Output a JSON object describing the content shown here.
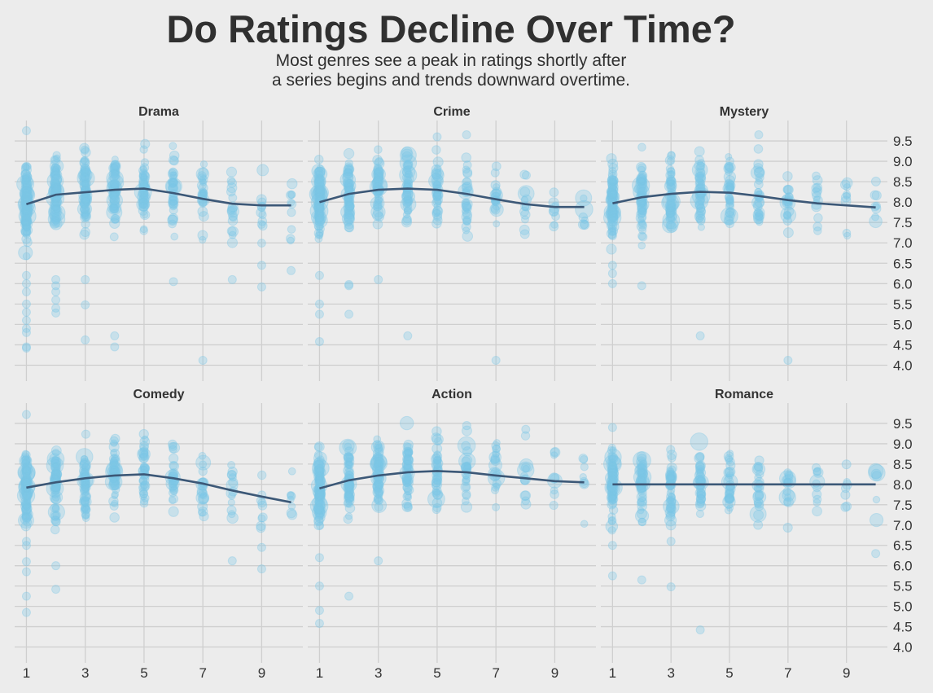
{
  "title": "Do Ratings Decline Over Time?",
  "subtitle_line1": "Most genres see a peak in ratings shortly after",
  "subtitle_line2": "a series begins and trends downward overtime.",
  "chart_data": {
    "type": "scatter",
    "layout": "facets-2x3",
    "x_ticks": [
      1,
      3,
      5,
      7,
      9
    ],
    "y_ticks": [
      4.0,
      4.5,
      5.0,
      5.5,
      6.0,
      6.5,
      7.0,
      7.5,
      8.0,
      8.5,
      9.0,
      9.5
    ],
    "x_range": [
      0.6,
      10.4
    ],
    "y_range": [
      3.85,
      10.0
    ],
    "grid": true,
    "point_color": "#7cc6e6",
    "trend_color": "#3c5877",
    "facets": [
      {
        "genre": "Drama",
        "trend": [
          [
            1,
            7.95
          ],
          [
            2,
            8.18
          ],
          [
            3,
            8.24
          ],
          [
            4,
            8.3
          ],
          [
            5,
            8.33
          ],
          [
            6,
            8.22
          ],
          [
            7,
            8.08
          ],
          [
            8,
            7.96
          ],
          [
            9,
            7.92
          ],
          [
            10,
            7.92
          ]
        ],
        "outliers": [
          [
            1,
            5.8
          ],
          [
            1,
            5.5
          ],
          [
            1,
            5.3
          ],
          [
            1,
            5.1
          ],
          [
            1,
            4.9
          ],
          [
            1,
            4.8
          ],
          [
            1,
            4.45
          ],
          [
            1,
            4.42
          ],
          [
            1,
            6.0
          ],
          [
            1,
            6.2
          ],
          [
            1,
            9.75
          ],
          [
            2,
            6.1
          ],
          [
            2,
            5.95
          ],
          [
            2,
            5.8
          ],
          [
            2,
            5.6
          ],
          [
            2,
            5.4
          ],
          [
            2,
            5.28
          ],
          [
            3,
            6.1
          ],
          [
            3,
            5.48
          ],
          [
            3,
            4.62
          ],
          [
            4,
            4.72
          ],
          [
            4,
            4.45
          ],
          [
            6,
            6.05
          ],
          [
            7,
            4.12
          ],
          [
            8,
            6.1
          ],
          [
            9,
            6.45
          ],
          [
            9,
            5.92
          ],
          [
            10,
            6.32
          ]
        ]
      },
      {
        "genre": "Crime",
        "trend": [
          [
            1,
            8.0
          ],
          [
            2,
            8.2
          ],
          [
            3,
            8.3
          ],
          [
            4,
            8.33
          ],
          [
            5,
            8.3
          ],
          [
            6,
            8.2
          ],
          [
            7,
            8.07
          ],
          [
            8,
            7.95
          ],
          [
            9,
            7.88
          ],
          [
            10,
            7.88
          ]
        ],
        "outliers": [
          [
            1,
            6.2
          ],
          [
            1,
            5.5
          ],
          [
            1,
            5.25
          ],
          [
            1,
            4.58
          ],
          [
            2,
            5.98
          ],
          [
            2,
            5.95
          ],
          [
            2,
            5.25
          ],
          [
            3,
            6.1
          ],
          [
            4,
            4.72
          ],
          [
            5,
            9.6
          ],
          [
            6,
            9.65
          ],
          [
            7,
            4.12
          ]
        ]
      },
      {
        "genre": "Mystery",
        "trend": [
          [
            1,
            7.97
          ],
          [
            2,
            8.12
          ],
          [
            3,
            8.2
          ],
          [
            4,
            8.25
          ],
          [
            5,
            8.23
          ],
          [
            6,
            8.15
          ],
          [
            7,
            8.05
          ],
          [
            8,
            7.97
          ],
          [
            9,
            7.92
          ],
          [
            10,
            7.87
          ]
        ],
        "outliers": [
          [
            1,
            6.45
          ],
          [
            1,
            6.25
          ],
          [
            1,
            6.0
          ],
          [
            2,
            5.95
          ],
          [
            4,
            4.72
          ],
          [
            6,
            9.65
          ],
          [
            7,
            4.12
          ]
        ]
      },
      {
        "genre": "Comedy",
        "trend": [
          [
            1,
            7.92
          ],
          [
            2,
            8.05
          ],
          [
            3,
            8.15
          ],
          [
            4,
            8.22
          ],
          [
            5,
            8.25
          ],
          [
            6,
            8.15
          ],
          [
            7,
            8.02
          ],
          [
            8,
            7.85
          ],
          [
            9,
            7.7
          ],
          [
            10,
            7.56
          ]
        ],
        "outliers": [
          [
            1,
            6.6
          ],
          [
            1,
            6.5
          ],
          [
            1,
            6.1
          ],
          [
            1,
            5.85
          ],
          [
            1,
            5.25
          ],
          [
            1,
            4.85
          ],
          [
            1,
            9.72
          ],
          [
            2,
            6.0
          ],
          [
            2,
            5.42
          ],
          [
            8,
            6.12
          ],
          [
            9,
            6.45
          ],
          [
            9,
            5.92
          ]
        ]
      },
      {
        "genre": "Action",
        "trend": [
          [
            1,
            7.9
          ],
          [
            2,
            8.1
          ],
          [
            3,
            8.22
          ],
          [
            4,
            8.3
          ],
          [
            5,
            8.33
          ],
          [
            6,
            8.3
          ],
          [
            7,
            8.22
          ],
          [
            8,
            8.15
          ],
          [
            9,
            8.08
          ],
          [
            10,
            8.05
          ]
        ],
        "outliers": [
          [
            1,
            6.2
          ],
          [
            1,
            5.5
          ],
          [
            1,
            4.9
          ],
          [
            1,
            4.58
          ],
          [
            2,
            5.25
          ],
          [
            3,
            6.12
          ]
        ]
      },
      {
        "genre": "Romance",
        "trend": [
          [
            1,
            8.0
          ],
          [
            2,
            8.0
          ],
          [
            3,
            8.0
          ],
          [
            4,
            8.0
          ],
          [
            5,
            8.0
          ],
          [
            6,
            8.0
          ],
          [
            7,
            8.0
          ],
          [
            8,
            8.0
          ],
          [
            9,
            8.0
          ],
          [
            10,
            8.0
          ]
        ],
        "outliers": [
          [
            1,
            6.5
          ],
          [
            1,
            5.75
          ],
          [
            1,
            9.4
          ],
          [
            2,
            5.65
          ],
          [
            3,
            5.48
          ],
          [
            3,
            6.6
          ],
          [
            4,
            4.42
          ],
          [
            10,
            6.3
          ]
        ]
      }
    ]
  }
}
